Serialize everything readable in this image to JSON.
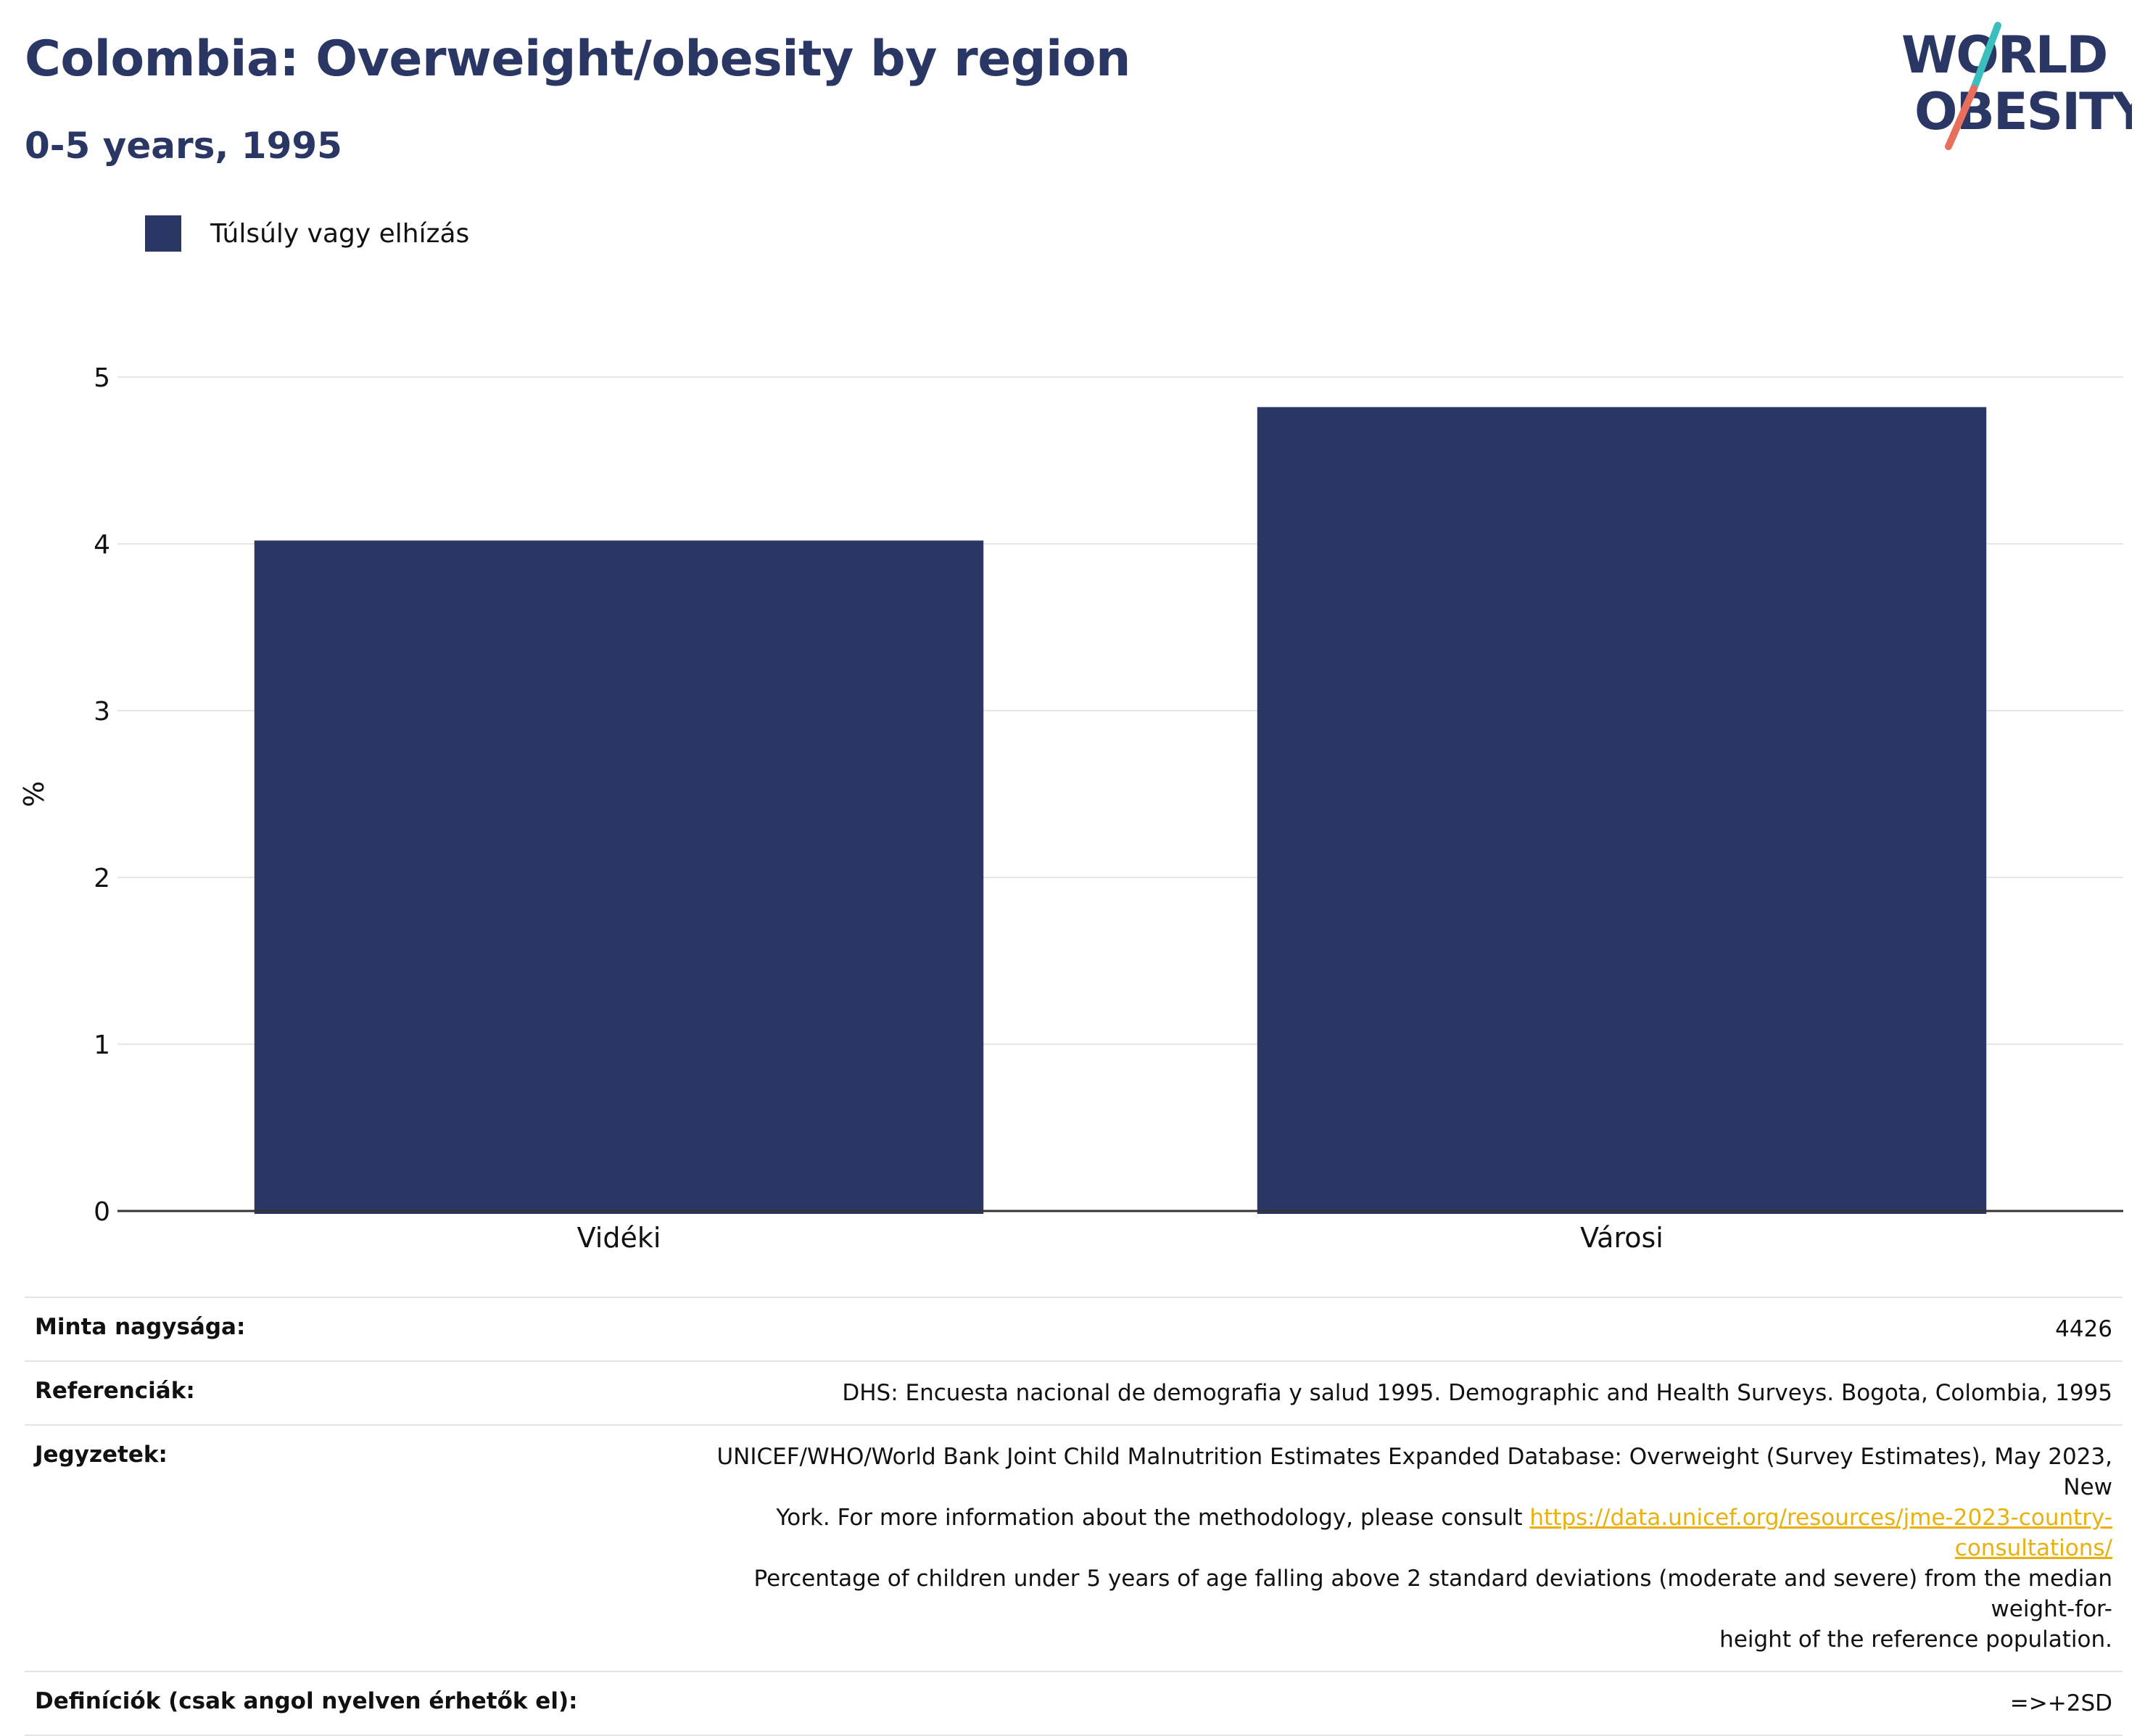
{
  "header": {
    "title": "Colombia: Overweight/obesity by region",
    "subtitle": "0-5 years, 1995"
  },
  "logo": {
    "line1": "WORLD",
    "line2": "OBESITY",
    "colors": {
      "text": "#2a3764",
      "slash_top": "#3bbfbd",
      "slash_bottom": "#e96f5d"
    }
  },
  "colors": {
    "bar": "#2a3764",
    "grid": "#e6e6e6",
    "axis": "#333333"
  },
  "chart_data": {
    "type": "bar",
    "title": "Colombia: Overweight/obesity by region",
    "subtitle": "0-5 years, 1995",
    "categories": [
      "Vidéki",
      "Városi"
    ],
    "series": [
      {
        "name": "Túlsúly vagy elhízás",
        "values": [
          4.02,
          4.82
        ],
        "color": "#2a3764"
      }
    ],
    "xlabel": "",
    "ylabel": "%",
    "ylim": [
      0,
      5
    ],
    "yticks": [
      0,
      1,
      2,
      3,
      4,
      5
    ],
    "grid": true,
    "legend_position": "top-left"
  },
  "info": {
    "sample_size": {
      "label": "Minta nagysága:",
      "value": "4426"
    },
    "references": {
      "label": "Referenciák:",
      "value": "DHS: Encuesta nacional de demografia y salud 1995. Demographic and Health Surveys. Bogota, Colombia, 1995"
    },
    "notes": {
      "label": "Jegyzetek:",
      "line1": "UNICEF/WHO/World Bank Joint Child Malnutrition Estimates Expanded Database: Overweight (Survey Estimates), May 2023, New",
      "line2_text": "York. For more information about the methodology, please consult ",
      "link": "https://data.unicef.org/resources/jme-2023-country-consultations/",
      "line3": "Percentage of children under 5 years of age falling above 2 standard deviations (moderate and severe) from the median weight-for-",
      "line4": "height of the reference population."
    },
    "definitions": {
      "label": "Definíciók (csak angol nyelven érhetők el):",
      "value": "=>+2SD"
    }
  }
}
